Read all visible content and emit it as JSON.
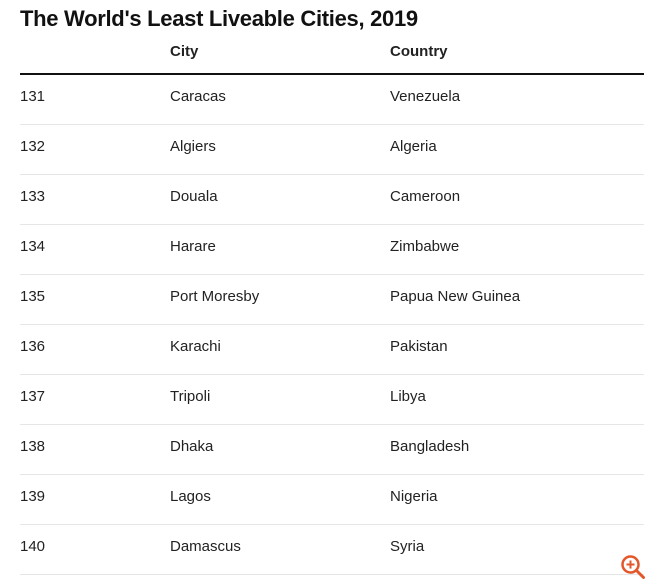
{
  "chart_data": {
    "type": "table",
    "title": "The World's Least Liveable Cities, 2019",
    "columns": [
      "",
      "City",
      "Country"
    ],
    "rows": [
      {
        "rank": "131",
        "city": "Caracas",
        "country": "Venezuela"
      },
      {
        "rank": "132",
        "city": "Algiers",
        "country": "Algeria"
      },
      {
        "rank": "133",
        "city": "Douala",
        "country": "Cameroon"
      },
      {
        "rank": "134",
        "city": "Harare",
        "country": "Zimbabwe"
      },
      {
        "rank": "135",
        "city": "Port Moresby",
        "country": "Papua New Guinea"
      },
      {
        "rank": "136",
        "city": "Karachi",
        "country": "Pakistan"
      },
      {
        "rank": "137",
        "city": "Tripoli",
        "country": "Libya"
      },
      {
        "rank": "138",
        "city": "Dhaka",
        "country": "Bangladesh"
      },
      {
        "rank": "139",
        "city": "Lagos",
        "country": "Nigeria"
      },
      {
        "rank": "140",
        "city": "Damascus",
        "country": "Syria"
      }
    ]
  },
  "icons": {
    "zoom": "zoom-in-icon",
    "zoom_color": "#e3572a"
  }
}
